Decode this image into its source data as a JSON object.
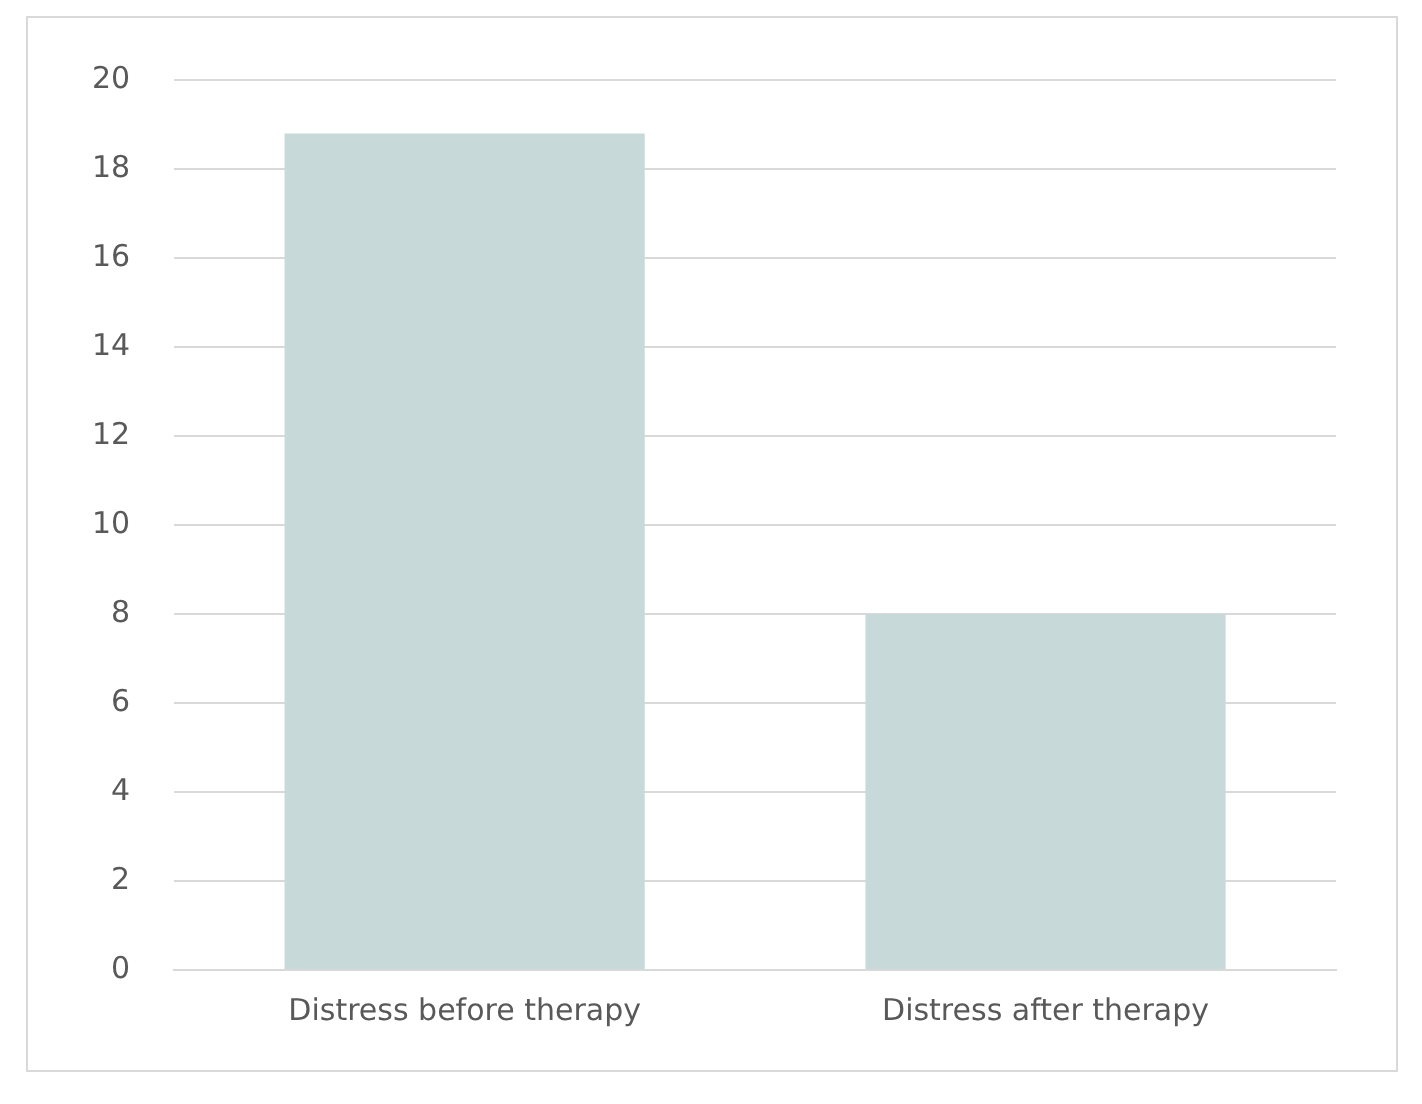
{
  "chart_data": {
    "type": "bar",
    "categories": [
      "Distress before therapy",
      "Distress after therapy"
    ],
    "values": [
      18.8,
      8
    ],
    "color": "#c7d9d8",
    "ylim": [
      0,
      20
    ],
    "yticks": [
      0,
      2,
      4,
      6,
      8,
      10,
      12,
      14,
      16,
      18,
      20
    ],
    "grid": "y",
    "legend": false
  }
}
